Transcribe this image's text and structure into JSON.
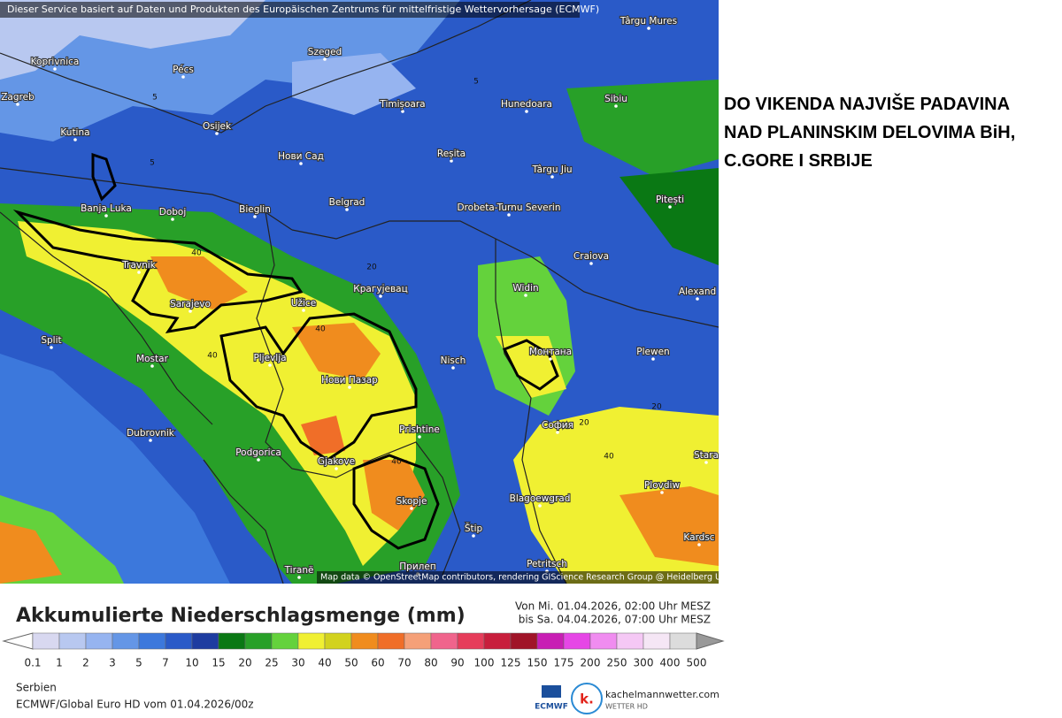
{
  "header": {
    "credit": "Dieser Service basiert auf Daten und Produkten des Europäischen Zentrums für mittelfristige Wettervorhersage (ECMWF)",
    "headline": "DO VIKENDA NAJVIŠE PADAVINA NAD PLANINSKIM DELOVIMA BiH, C.GORE I SRBIJE"
  },
  "map": {
    "places": [
      "Koprivnica",
      "Pécs",
      "Szeged",
      "Târgu Mures",
      "Zagreb",
      "Osijek",
      "Timișoara",
      "Hunedoara",
      "Sibiu",
      "Kutina",
      "Нови Сад",
      "Reșita",
      "Târgu Jiu",
      "Pitești",
      "Banja Luka",
      "Doboj",
      "Bieglin",
      "Belgrad",
      "Drobeta-Turnu Severin",
      "Craiova",
      "Travnik",
      "Крагујевац",
      "Widin",
      "Alexand",
      "Sarajevo",
      "Užice",
      "Split",
      "Mostar",
      "Pljevlja",
      "Nisch",
      "Монтана",
      "Plewen",
      "Нови Пазар",
      "Dubrovnik",
      "Prishtine",
      "София",
      "Podgorica",
      "Gjakove",
      "Stara",
      "Plovdiw",
      "Skopje",
      "Blagoewgrad",
      "Štip",
      "Kardsc",
      "Tiranë",
      "Прилеп",
      "Petritsch"
    ],
    "contour_labels": [
      "5",
      "5",
      "5",
      "20",
      "20",
      "20",
      "40",
      "40",
      "40",
      "40",
      "40"
    ],
    "attribution": "Map data © OpenStreetMap contributors, rendering GIScience Research Group @ Heidelberg University"
  },
  "legend": {
    "title": "Akkumulierte Niederschlagsmenge (mm)",
    "period": [
      "Von Mi. 01.04.2026, 02:00 Uhr MESZ",
      "bis Sa. 04.04.2026, 07:00 Uhr MESZ"
    ],
    "levels": [
      0.1,
      1,
      2,
      3,
      5,
      7,
      10,
      15,
      20,
      25,
      30,
      40,
      50,
      60,
      70,
      80,
      90,
      100,
      125,
      150,
      175,
      200,
      250,
      300,
      400,
      500
    ],
    "colors": [
      "#d8d8f0",
      "#b8c8f0",
      "#96b4f0",
      "#6496e6",
      "#3c78dc",
      "#2a5ac8",
      "#1e3ca0",
      "#0a7814",
      "#28a028",
      "#64d23c",
      "#f0f032",
      "#d2d21e",
      "#f08c1e",
      "#f06e28",
      "#f5a078",
      "#f0648c",
      "#e63c5a",
      "#c81e3c",
      "#a01428",
      "#c81eb4",
      "#e646e6",
      "#f08cf0",
      "#f5c8f5",
      "#f5e6f5",
      "#dcdcdc"
    ]
  },
  "footer": {
    "region": "Serbien",
    "model": "ECMWF/Global Euro HD vom 01.04.2026/00z",
    "ecmwf_logo": "ECMWF",
    "brand_icon": "k.",
    "brand": "kachelmannwetter.com",
    "brand_sub": "WETTER HD"
  }
}
